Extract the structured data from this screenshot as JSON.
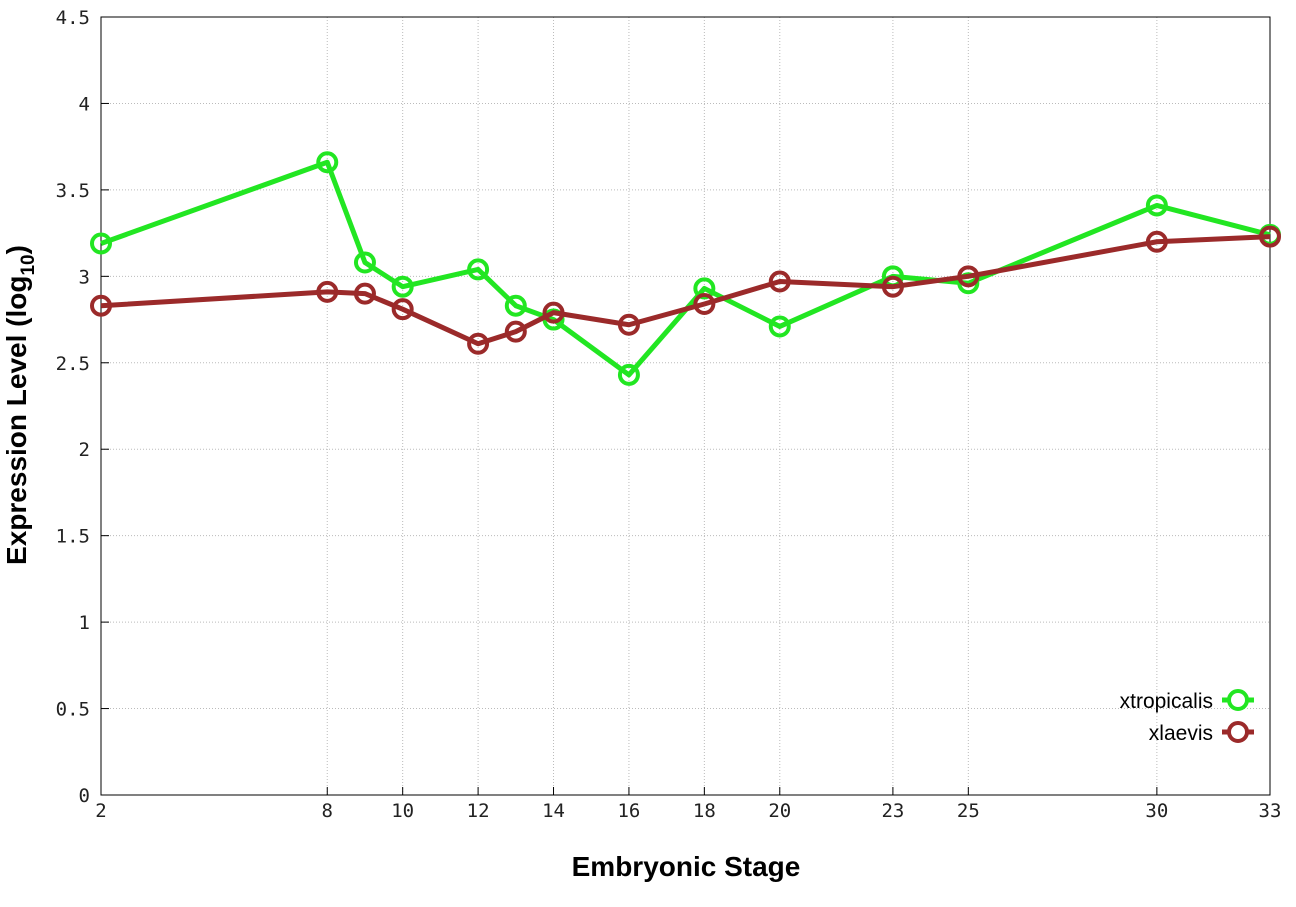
{
  "chart_data": {
    "type": "line",
    "x_label": "Embryonic Stage",
    "y_label": [
      "Expression Level (log",
      "10",
      ")"
    ],
    "x": [
      2,
      8,
      9,
      10,
      12,
      13,
      14,
      16,
      18,
      20,
      23,
      25,
      30,
      33
    ],
    "series": [
      {
        "name": "xtropicalis",
        "color": "#22e622",
        "values": [
          3.19,
          3.66,
          3.08,
          2.94,
          3.04,
          2.83,
          2.75,
          2.43,
          2.93,
          2.71,
          3.0,
          2.96,
          3.41,
          3.24
        ]
      },
      {
        "name": "xlaevis",
        "color": "#9b2a2a",
        "values": [
          2.83,
          2.91,
          2.9,
          2.81,
          2.61,
          2.68,
          2.79,
          2.72,
          2.84,
          2.97,
          2.94,
          3.0,
          3.2,
          3.23
        ]
      }
    ],
    "xlim": [
      2,
      33
    ],
    "xticks": [
      2,
      8,
      10,
      12,
      14,
      16,
      18,
      20,
      23,
      25,
      30,
      33
    ],
    "ylim": [
      0,
      4.5
    ],
    "yticks": [
      0,
      0.5,
      1,
      1.5,
      2,
      2.5,
      3,
      3.5,
      4,
      4.5
    ],
    "grid": true,
    "legend": "lower right"
  }
}
